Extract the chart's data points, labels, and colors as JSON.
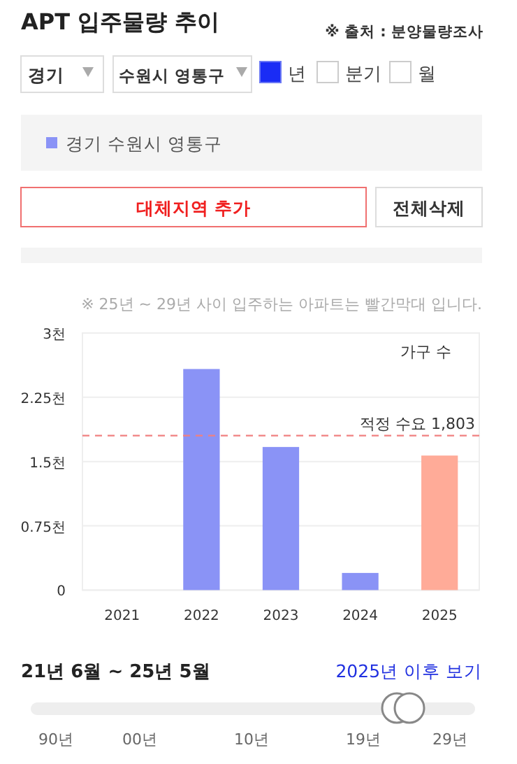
{
  "chart_data": {
    "type": "bar",
    "title": "APT 입주물량 추이",
    "subtitle": "※ 25년 ~ 29년 사이 입주하는 아파트는 빨간막대 입니다.",
    "ylabel": "가구 수",
    "categories": [
      "2021",
      "2022",
      "2023",
      "2024",
      "2025"
    ],
    "series": [
      {
        "name": "경기 수원시 영통구",
        "color": "#8a93f6",
        "colors": [
          "#8a93f6",
          "#8a93f6",
          "#8a93f6",
          "#8a93f6",
          "#ffab98"
        ],
        "values": [
          0,
          2.58,
          1.67,
          0.2,
          1.57
        ]
      }
    ],
    "ylim": [
      0,
      3
    ],
    "yticks": [
      {
        "value": 0,
        "label": "0"
      },
      {
        "value": 0.75,
        "label": "0.75천"
      },
      {
        "value": 1.5,
        "label": "1.5천"
      },
      {
        "value": 2.25,
        "label": "2.25천"
      },
      {
        "value": 3,
        "label": "3천"
      }
    ],
    "grid": "y",
    "legend": "top",
    "ref_lines": [
      {
        "axis": "y",
        "value": 1.803,
        "label": "적정 수요 1,803",
        "color": "#f08080",
        "line_style": "dashed"
      }
    ],
    "annotations": [
      "※ 출처 : 분양물량조사",
      "경기",
      "수원시 영통구",
      "년",
      "분기",
      "월",
      "대체지역 추가",
      "전체삭제",
      "21년 6월 ~ 25년 5월",
      "2025년 이후 보기",
      "90년",
      "00년",
      "10년",
      "19년",
      "29년"
    ]
  }
}
